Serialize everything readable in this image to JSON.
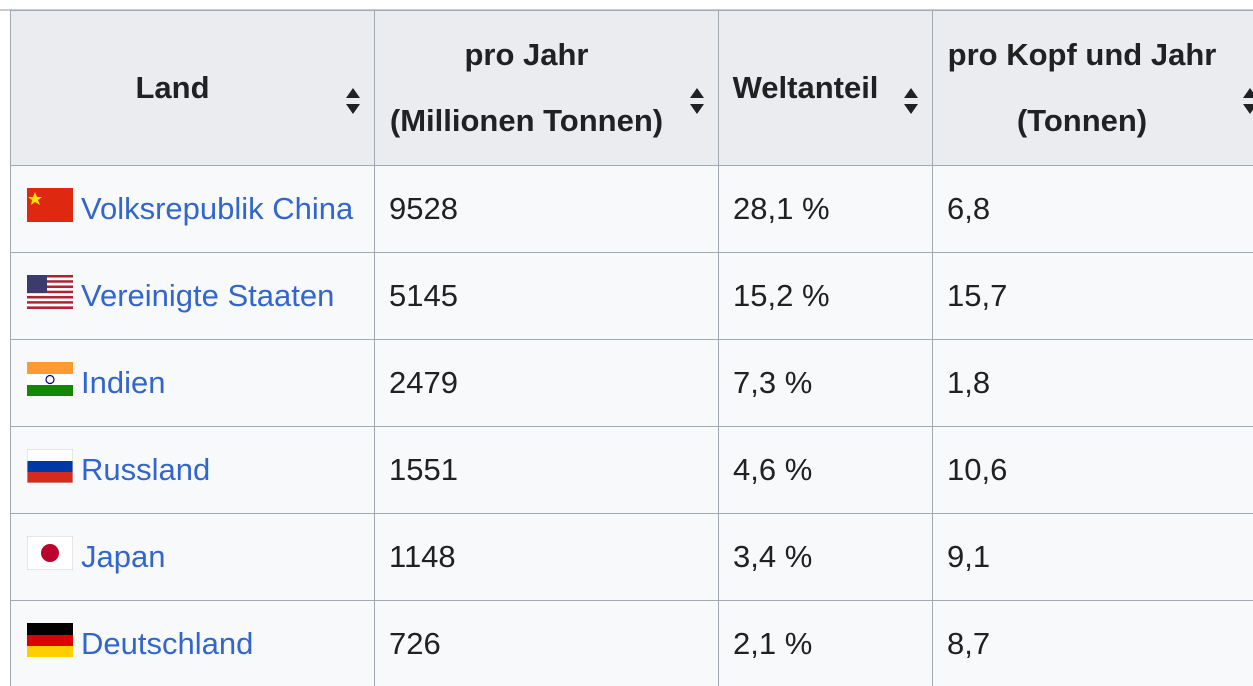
{
  "table": {
    "headers": [
      [
        "Land"
      ],
      [
        "pro Jahr",
        "(Millionen Tonnen)"
      ],
      [
        "Weltanteil"
      ],
      [
        "pro Kopf und Jahr",
        "(Tonnen)"
      ]
    ],
    "rows": [
      [
        "Volksrepublik China",
        "9528",
        "28,1 %",
        "6,8"
      ],
      [
        "Vereinigte Staaten",
        "5145",
        "15,2 %",
        "15,7"
      ],
      [
        "Indien",
        "2479",
        "7,3 %",
        "1,8"
      ],
      [
        "Russland",
        "1551",
        "4,6 %",
        "10,6"
      ],
      [
        "Japan",
        "1148",
        "3,4 %",
        "9,1"
      ],
      [
        "Deutschland",
        "726",
        "2,1 %",
        "8,7"
      ]
    ]
  }
}
